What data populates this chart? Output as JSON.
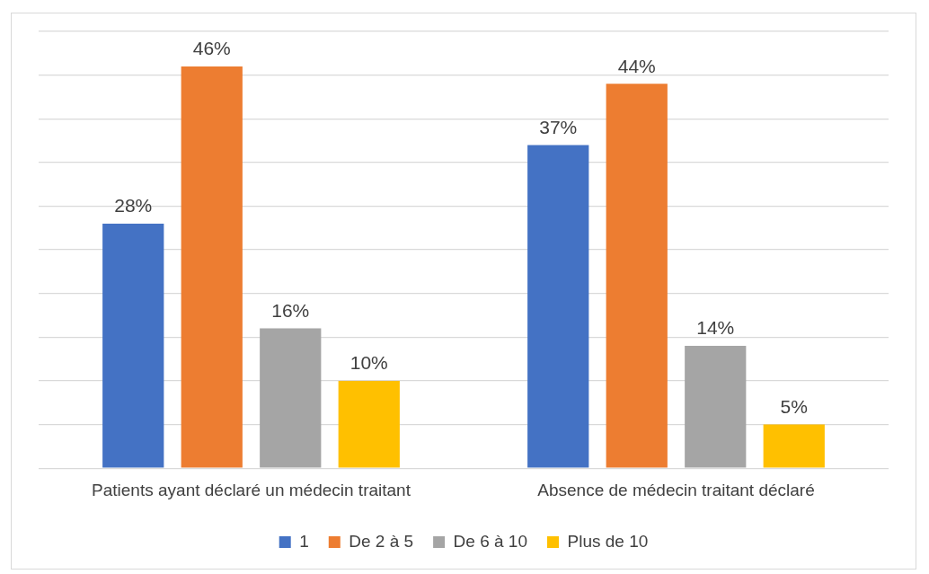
{
  "chart_data": {
    "type": "bar",
    "categories": [
      "Patients ayant déclaré un médecin traitant",
      "Absence de médecin traitant déclaré"
    ],
    "series": [
      {
        "name": "1",
        "color": "#4472c4",
        "values": [
          28,
          37
        ],
        "value_labels": [
          "28%",
          "37%"
        ]
      },
      {
        "name": "De 2 à 5",
        "color": "#ed7d31",
        "values": [
          46,
          44
        ],
        "value_labels": [
          "46%",
          "44%"
        ]
      },
      {
        "name": "De 6 à 10",
        "color": "#a5a5a5",
        "values": [
          16,
          14
        ],
        "value_labels": [
          "16%",
          "14%"
        ]
      },
      {
        "name": "Plus de 10",
        "color": "#ffc000",
        "values": [
          10,
          5
        ],
        "value_labels": [
          "10%",
          "5%"
        ]
      }
    ],
    "ylim": [
      0,
      50
    ],
    "yticks": [
      {
        "value": 0,
        "label": null
      },
      {
        "value": 5,
        "label": null
      },
      {
        "value": 10,
        "label": null
      },
      {
        "value": 15,
        "label": null
      },
      {
        "value": 20,
        "label": null
      },
      {
        "value": 25,
        "label": null
      },
      {
        "value": 30,
        "label": null
      },
      {
        "value": 35,
        "label": null
      },
      {
        "value": 40,
        "label": null
      },
      {
        "value": 45,
        "label": null
      },
      {
        "value": 50,
        "label": null
      }
    ],
    "grid": "y",
    "legend": "bottom",
    "tick_labels": "x"
  }
}
